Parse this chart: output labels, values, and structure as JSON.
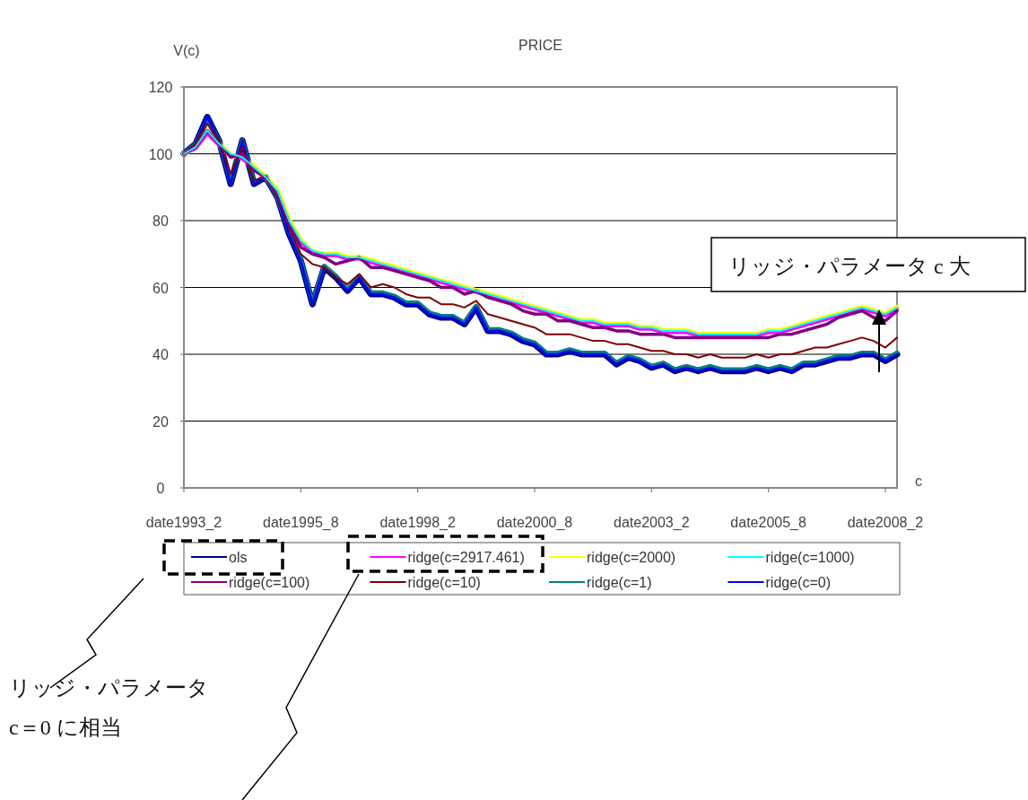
{
  "chart_data": {
    "type": "line",
    "title": "PRICE",
    "ylabel": "V(c)",
    "xlabel": "c",
    "x": [
      "1993-02",
      "1993-05",
      "1993-08",
      "1993-11",
      "1994-02",
      "1994-05",
      "1994-08",
      "1994-11",
      "1995-02",
      "1995-05",
      "1995-08",
      "1995-11",
      "1996-02",
      "1996-05",
      "1996-08",
      "1996-11",
      "1997-02",
      "1997-05",
      "1997-08",
      "1997-11",
      "1998-02",
      "1998-05",
      "1998-08",
      "1998-11",
      "1999-02",
      "1999-05",
      "1999-08",
      "1999-11",
      "2000-02",
      "2000-05",
      "2000-08",
      "2000-11",
      "2001-02",
      "2001-05",
      "2001-08",
      "2001-11",
      "2002-02",
      "2002-05",
      "2002-08",
      "2002-11",
      "2003-02",
      "2003-05",
      "2003-08",
      "2003-11",
      "2004-02",
      "2004-05",
      "2004-08",
      "2004-11",
      "2005-02",
      "2005-05",
      "2005-08",
      "2005-11",
      "2006-02",
      "2006-05",
      "2006-08",
      "2006-11",
      "2007-02",
      "2007-05",
      "2007-08",
      "2007-11",
      "2008-02",
      "2008-05"
    ],
    "series": [
      {
        "name": "ols",
        "color": "#000080",
        "values": [
          100,
          103,
          111,
          104,
          91,
          104,
          91,
          93,
          87,
          76,
          68,
          55,
          66,
          63,
          59,
          63,
          58,
          58,
          57,
          55,
          55,
          52,
          51,
          51,
          49,
          54,
          47,
          47,
          46,
          44,
          43,
          40,
          40,
          41,
          40,
          40,
          40,
          37,
          39,
          38,
          36,
          37,
          35,
          36,
          35,
          36,
          35,
          35,
          35,
          36,
          35,
          36,
          35,
          37,
          37,
          38,
          39,
          39,
          40,
          40,
          38,
          40
        ]
      },
      {
        "name": "ridge(c=2917.461)",
        "color": "#ff00ff",
        "values": [
          100,
          101.5,
          106,
          102.5,
          99.5,
          98.5,
          95.5,
          92.5,
          88.5,
          79.5,
          73.5,
          70.5,
          69.5,
          69.5,
          68.5,
          68.5,
          67.5,
          66.5,
          65.5,
          64.5,
          63.5,
          62.5,
          61.5,
          60.5,
          59.5,
          58.5,
          57.5,
          56.5,
          55.5,
          54.5,
          53.5,
          52.5,
          51.5,
          50.5,
          49.5,
          49.5,
          48.5,
          48.5,
          48.5,
          47.5,
          47.5,
          46.5,
          46.5,
          46.5,
          45.5,
          45.5,
          45.5,
          45.5,
          45.5,
          45.5,
          46.5,
          46.5,
          47.5,
          48.5,
          49.5,
          50.5,
          51.5,
          52.5,
          53.5,
          52.5,
          51.5,
          53.5
        ]
      },
      {
        "name": "ridge(c=2000)",
        "color": "#ffff00",
        "values": [
          100,
          102,
          106.5,
          103,
          99.5,
          99,
          96,
          93,
          89,
          80,
          74,
          70.5,
          70,
          70,
          69,
          69,
          68,
          67,
          66,
          65,
          64,
          63,
          62,
          61,
          60,
          59,
          58,
          57,
          56,
          55,
          54,
          53,
          52,
          51,
          50,
          50,
          49,
          49,
          49,
          48,
          48,
          47,
          47,
          47,
          46,
          46,
          46,
          46,
          46,
          46,
          47,
          47,
          48,
          49,
          50,
          51,
          52,
          53,
          54,
          53,
          52,
          54
        ]
      },
      {
        "name": "ridge(c=1000)",
        "color": "#00ffff",
        "values": [
          100,
          102,
          107,
          103,
          100,
          99,
          96,
          93,
          89,
          80,
          74,
          71,
          70,
          70,
          69,
          69,
          68,
          67,
          66,
          65,
          64,
          63,
          62,
          61,
          60,
          59,
          58,
          57,
          56,
          55,
          54,
          53,
          52,
          51,
          50,
          50,
          49,
          49,
          49,
          48,
          48,
          47,
          47,
          47,
          46,
          46,
          46,
          46,
          46,
          46,
          47,
          47,
          48,
          49,
          50,
          51,
          52,
          53,
          54,
          53,
          52,
          54
        ]
      },
      {
        "name": "ridge(c=100)",
        "color": "#800080",
        "values": [
          100,
          102,
          107,
          103,
          99,
          100,
          95,
          93,
          88,
          79,
          72,
          70,
          69,
          67,
          68,
          69,
          66,
          66,
          65,
          64,
          63,
          62,
          60,
          60,
          58,
          59,
          57,
          56,
          55,
          53,
          52,
          52,
          50,
          50,
          49,
          48,
          48,
          47,
          47,
          46,
          46,
          46,
          45,
          45,
          45,
          45,
          45,
          45,
          45,
          45,
          45,
          46,
          46,
          47,
          48,
          49,
          51,
          52,
          53,
          51,
          50,
          53
        ]
      },
      {
        "name": "ridge(c=10)",
        "color": "#800000",
        "values": [
          100,
          103,
          109,
          104,
          94,
          102,
          92,
          93,
          87,
          78,
          70,
          67,
          66,
          63,
          61,
          64,
          60,
          61,
          60,
          58,
          57,
          57,
          55,
          55,
          54,
          56,
          52,
          51,
          50,
          49,
          48,
          46,
          46,
          46,
          45,
          44,
          44,
          43,
          43,
          42,
          41,
          41,
          40,
          40,
          39,
          40,
          39,
          39,
          39,
          40,
          39,
          40,
          40,
          41,
          42,
          42,
          43,
          44,
          45,
          44,
          42,
          45
        ]
      },
      {
        "name": "ridge(c=1)",
        "color": "#008080",
        "values": [
          100,
          103,
          110.5,
          104,
          91.5,
          104,
          91.5,
          93,
          87,
          76.5,
          68.5,
          55.5,
          66.5,
          63.5,
          59.5,
          63.5,
          58.5,
          58.5,
          57.5,
          55.5,
          55.5,
          52.5,
          51.5,
          51.5,
          49.5,
          54.5,
          47.5,
          47.5,
          46.5,
          44.5,
          43.5,
          40.5,
          40.5,
          41.5,
          40.5,
          40.5,
          40.5,
          37.5,
          39.5,
          38.5,
          36.5,
          37.5,
          35.5,
          36.5,
          35.5,
          36.5,
          35.5,
          35.5,
          35.5,
          36.5,
          35.5,
          36.5,
          35.5,
          37.5,
          37.5,
          38.5,
          39.5,
          39.5,
          40.5,
          40.5,
          38.5,
          40.5
        ]
      },
      {
        "name": "ridge(c=0)",
        "color": "#0000ff",
        "values": [
          100,
          103,
          111,
          104,
          91,
          104,
          91,
          93,
          87,
          76,
          68,
          55,
          66,
          63,
          59,
          63,
          58,
          58,
          57,
          55,
          55,
          52,
          51,
          51,
          49,
          54,
          47,
          47,
          46,
          44,
          43,
          40,
          40,
          41,
          40,
          40,
          40,
          37,
          39,
          38,
          36,
          37,
          35,
          36,
          35,
          36,
          35,
          35,
          35,
          36,
          35,
          36,
          35,
          37,
          37,
          38,
          39,
          39,
          40,
          40,
          38,
          40
        ]
      }
    ],
    "xlim": [
      "1993-02",
      "2008-05"
    ],
    "xticks": [
      {
        "value": "1993-02",
        "label": "date1993_2"
      },
      {
        "value": "1995-08",
        "label": "date1995_8"
      },
      {
        "value": "1998-02",
        "label": "date1998_2"
      },
      {
        "value": "2000-08",
        "label": "date2000_8"
      },
      {
        "value": "2003-02",
        "label": "date2003_2"
      },
      {
        "value": "2005-08",
        "label": "date2005_8"
      },
      {
        "value": "2008-02",
        "label": "date2008_2"
      }
    ],
    "ylim": [
      0,
      120
    ],
    "yticks": [
      0,
      20,
      40,
      60,
      80,
      100,
      120
    ],
    "grid": "y",
    "legend": "bottom",
    "marker": "none",
    "line_style": "solid",
    "annotations": [
      "リッジ・パラメータ c 大",
      "リッジ・パラメータ\nc＝0 に相当"
    ]
  }
}
